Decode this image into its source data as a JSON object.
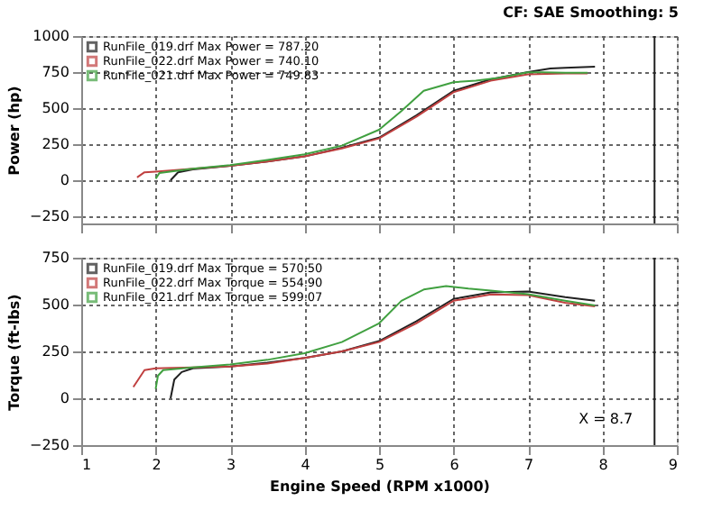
{
  "chart_data": [
    {
      "type": "line",
      "title": "CF: SAE  Smoothing: 5",
      "ylabel": "Power (hp)",
      "xlim": [
        1,
        9
      ],
      "xticks": [
        1,
        2,
        3,
        4,
        5,
        6,
        7,
        8,
        9
      ],
      "ylim": [
        -300,
        1000
      ],
      "yticks": [
        -250,
        0,
        250,
        500,
        750,
        1000
      ],
      "grid": true,
      "legend": "top left",
      "tick_labels": "y",
      "series": [
        {
          "name": "RunFile_019.drf Max Power = 787.20",
          "color": "#202020",
          "x": [
            2.2,
            2.3,
            2.5,
            3,
            3.5,
            4,
            4.5,
            5,
            5.5,
            6,
            6.5,
            7,
            7.3,
            7.5,
            7.9
          ],
          "values": [
            0,
            55,
            75,
            100,
            130,
            165,
            225,
            295,
            450,
            620,
            700,
            750,
            775,
            780,
            787
          ]
        },
        {
          "name": "RunFile_022.drf Max Power = 740.10",
          "color": "#c04040",
          "x": [
            1.75,
            1.85,
            2.0,
            2.5,
            3,
            3.5,
            4,
            4.5,
            5,
            5.5,
            6,
            6.5,
            7,
            7.5,
            7.8
          ],
          "values": [
            20,
            55,
            60,
            80,
            100,
            130,
            165,
            220,
            290,
            440,
            610,
            690,
            735,
            740,
            740
          ]
        },
        {
          "name": "RunFile_021.drf Max Power = 749.83",
          "color": "#40a040",
          "x": [
            2.0,
            2.05,
            2.5,
            3,
            3.5,
            4,
            4.5,
            5,
            5.3,
            5.6,
            6,
            6.3,
            6.6,
            7,
            7.2,
            7.5,
            7.8
          ],
          "values": [
            10,
            50,
            80,
            105,
            140,
            180,
            240,
            350,
            480,
            620,
            680,
            690,
            710,
            749,
            749,
            745,
            745
          ]
        }
      ],
      "ref_lines": [
        {
          "axis": "x",
          "value": 8.7
        }
      ]
    },
    {
      "type": "line",
      "xlabel": "Engine Speed (RPM x1000)",
      "ylabel": "Torque (ft-lbs)",
      "xlim": [
        1,
        9
      ],
      "xticks": [
        1,
        2,
        3,
        4,
        5,
        6,
        7,
        8,
        9
      ],
      "ylim": [
        -250,
        750
      ],
      "yticks": [
        -250,
        0,
        250,
        500,
        750
      ],
      "grid": true,
      "legend": "top left",
      "series": [
        {
          "name": "RunFile_019.drf Max Torque = 570.50",
          "color": "#202020",
          "x": [
            2.2,
            2.25,
            2.35,
            2.5,
            3,
            3.5,
            4,
            4.5,
            5,
            5.5,
            6,
            6.5,
            7,
            7.5,
            7.9
          ],
          "values": [
            0,
            100,
            140,
            160,
            170,
            190,
            215,
            250,
            305,
            410,
            530,
            565,
            570,
            540,
            520
          ]
        },
        {
          "name": "RunFile_022.drf Max Torque = 554.90",
          "color": "#c04040",
          "x": [
            1.7,
            1.85,
            2.0,
            2.5,
            3,
            3.5,
            4,
            4.5,
            5,
            5.5,
            6,
            6.5,
            7,
            7.5,
            7.9
          ],
          "values": [
            60,
            150,
            160,
            165,
            170,
            185,
            215,
            250,
            300,
            400,
            520,
            554,
            550,
            510,
            490
          ]
        },
        {
          "name": "RunFile_021.drf Max Torque = 599.07",
          "color": "#40a040",
          "x": [
            2.0,
            2.03,
            2.1,
            2.5,
            3,
            3.5,
            4,
            4.5,
            5,
            5.3,
            5.6,
            5.9,
            6.2,
            6.5,
            7,
            7.5,
            7.9
          ],
          "values": [
            50,
            120,
            150,
            165,
            180,
            205,
            240,
            300,
            400,
            520,
            580,
            599,
            585,
            575,
            555,
            520,
            495
          ]
        }
      ],
      "ref_lines": [
        {
          "axis": "x",
          "value": 8.7,
          "label": "X = 8.7"
        }
      ]
    }
  ]
}
